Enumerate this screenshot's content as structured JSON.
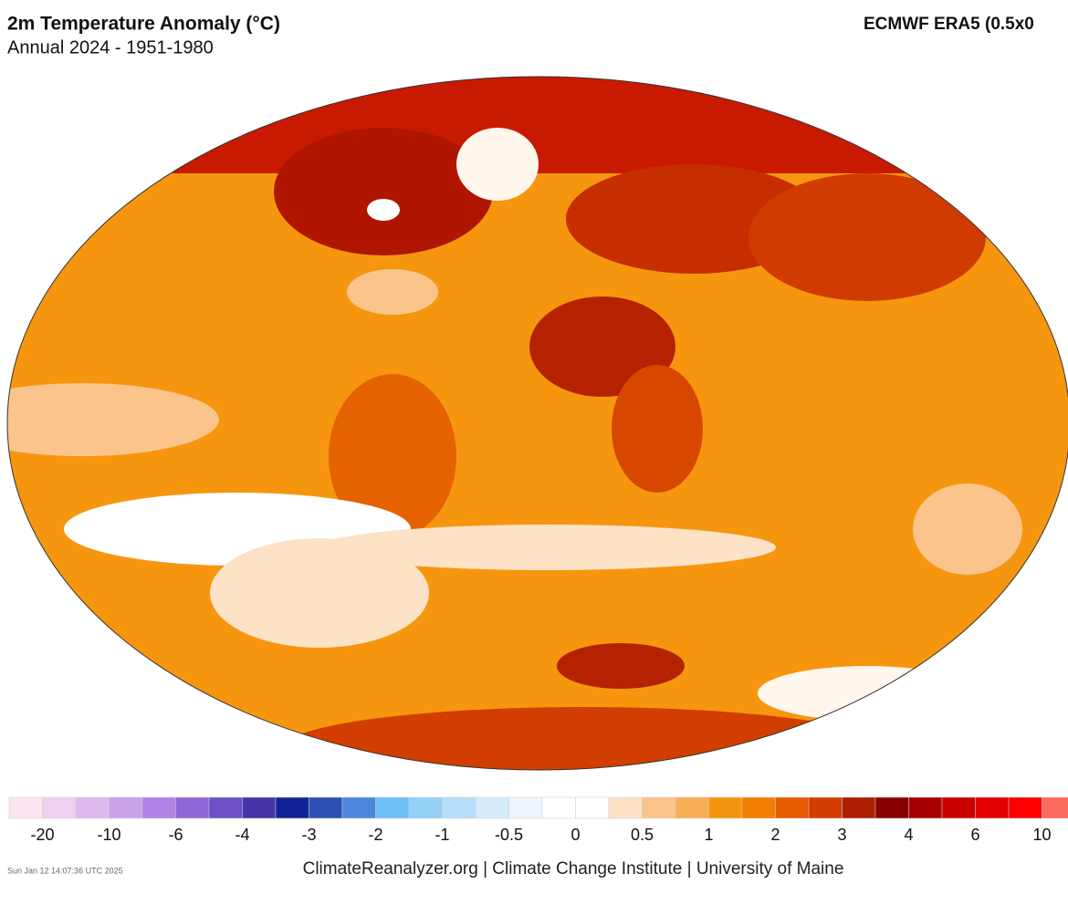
{
  "header": {
    "title": "2m Temperature Anomaly (°C)",
    "subtitle": "Annual 2024 - 1951-1980",
    "source": "ECMWF ERA5 (0.5x0"
  },
  "colorbar": {
    "colors": [
      "#fde4f0",
      "#efd0f0",
      "#dfb9ee",
      "#cca2ec",
      "#b382e6",
      "#9067d6",
      "#6c50c4",
      "#4534a8",
      "#12239a",
      "#2d50b6",
      "#4b88dc",
      "#6cc0f6",
      "#94cff8",
      "#b7def9",
      "#d6ebfa",
      "#edf5fc",
      "#ffffff",
      "#ffffff",
      "#fde2c6",
      "#fbc48a",
      "#f9ad55",
      "#f6960f",
      "#f47e00",
      "#e65a00",
      "#d23e00",
      "#ad1f00",
      "#860000",
      "#a80000",
      "#c90000",
      "#e30000",
      "#ff0000",
      "#ff6b5c"
    ],
    "labels": [
      -20,
      -10,
      -6,
      -4,
      -3,
      -2,
      -1,
      -0.5,
      0,
      0.5,
      1,
      2,
      3,
      4,
      6,
      10
    ]
  },
  "footer": {
    "credit": "ClimateReanalyzer.org | Climate Change Institute | University of Maine",
    "timestamp": "Sun Jan 12 14:07:36 UTC 2025"
  }
}
